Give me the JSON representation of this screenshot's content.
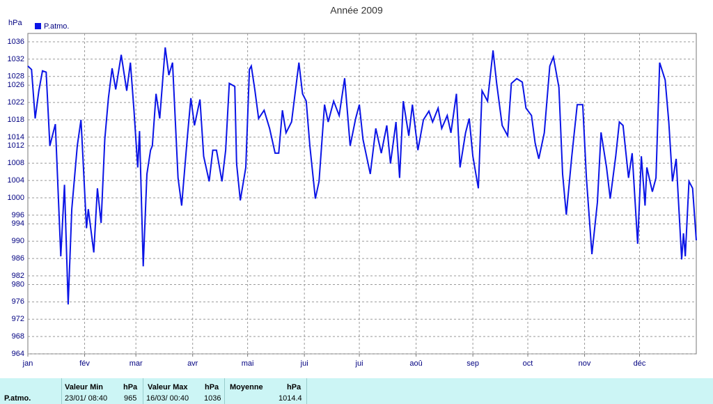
{
  "chart_data": {
    "type": "line",
    "title": "Année 2009",
    "ylabel": "hPa",
    "x": [
      0,
      2,
      4,
      6,
      8,
      10,
      12,
      15,
      18,
      20,
      22,
      24,
      27,
      29,
      30,
      32,
      33,
      36,
      38,
      40,
      42,
      44,
      46,
      48,
      51,
      54,
      56,
      58,
      60,
      61,
      63,
      65,
      67,
      68,
      70,
      72,
      75,
      77,
      79,
      82,
      84,
      87,
      89,
      91,
      94,
      96,
      99,
      101,
      103,
      106,
      108,
      110,
      113,
      114,
      116,
      119,
      121,
      122,
      124,
      126,
      129,
      132,
      135,
      137,
      139,
      141,
      144,
      148,
      150,
      152,
      154,
      157,
      159,
      162,
      164,
      167,
      170,
      173,
      176,
      179,
      181,
      183,
      187,
      190,
      193,
      196,
      198,
      201,
      203,
      205,
      208,
      210,
      213,
      216,
      219,
      221,
      224,
      226,
      229,
      231,
      234,
      236,
      239,
      241,
      243,
      246,
      248,
      251,
      254,
      256,
      259,
      262,
      264,
      267,
      270,
      272,
      275,
      277,
      279,
      282,
      285,
      287,
      290,
      292,
      294,
      297,
      300,
      303,
      305,
      308,
      311,
      313,
      316,
      318,
      321,
      323,
      325,
      328,
      330,
      333,
      335,
      337,
      338,
      341,
      343,
      345,
      348,
      350,
      352,
      354,
      357,
      358,
      359,
      361,
      363,
      365
    ],
    "series": [
      {
        "name": "P.atmo.",
        "color": "#0a14e6",
        "values": [
          1030.4,
          1029.6,
          1018.3,
          1024.7,
          1029.3,
          1029,
          1012,
          1017,
          986.5,
          1003,
          975.4,
          997.4,
          1012,
          1018,
          1010,
          993,
          997.4,
          987.4,
          1002.2,
          994.2,
          1013.5,
          1023,
          1029.9,
          1025,
          1033,
          1024.7,
          1031.2,
          1020,
          1007,
          1015.4,
          984.2,
          1005.5,
          1011,
          1012,
          1024,
          1018.3,
          1034.7,
          1028.3,
          1031.2,
          1004.6,
          998.2,
          1013.5,
          1023,
          1016.7,
          1022.7,
          1009.6,
          1003.8,
          1011,
          1011,
          1003.8,
          1011,
          1026.4,
          1025.7,
          1007.9,
          999.4,
          1007,
          1029.6,
          1030.4,
          1024.8,
          1018.3,
          1020.2,
          1016,
          1010.3,
          1010.3,
          1020.2,
          1015,
          1017.5,
          1031.2,
          1024,
          1022.3,
          1012,
          999.8,
          1003.8,
          1021.5,
          1017.5,
          1022.3,
          1019,
          1027.6,
          1012,
          1018.3,
          1021.5,
          1013.5,
          1005.5,
          1016,
          1010.3,
          1016.7,
          1007.9,
          1017.5,
          1004.6,
          1022.3,
          1014.3,
          1021.5,
          1011,
          1018,
          1020,
          1017.5,
          1020.7,
          1016,
          1019,
          1015,
          1024,
          1007,
          1015,
          1018.3,
          1009.6,
          1002.2,
          1024.7,
          1022.3,
          1034,
          1026.4,
          1016.7,
          1014.3,
          1026.4,
          1027.5,
          1026.7,
          1020.7,
          1019,
          1012.7,
          1009,
          1015,
          1030.4,
          1032.5,
          1025.5,
          1005.5,
          996.1,
          1009.6,
          1021.5,
          1021.5,
          1004.6,
          987,
          999,
          1015.1,
          1007,
          999.8,
          1009.6,
          1017.5,
          1016.7,
          1004.6,
          1010.3,
          989.4,
          1009.6,
          998.2,
          1007,
          1001.4,
          1004.6,
          1031.2,
          1027.2,
          1017.5,
          1003.8,
          1009,
          985.8,
          991.8,
          986.5,
          1003.8,
          1002.2,
          990.2
        ]
      }
    ],
    "xlim": [
      0,
      365
    ],
    "xticks": [
      {
        "value": 0,
        "label": "jan"
      },
      {
        "value": 31,
        "label": "fév"
      },
      {
        "value": 59,
        "label": "mar"
      },
      {
        "value": 90,
        "label": "avr"
      },
      {
        "value": 120,
        "label": "mai"
      },
      {
        "value": 151,
        "label": "jui"
      },
      {
        "value": 181,
        "label": "jui"
      },
      {
        "value": 212,
        "label": "aoû"
      },
      {
        "value": 243,
        "label": "sep"
      },
      {
        "value": 273,
        "label": "oct"
      },
      {
        "value": 304,
        "label": "nov"
      },
      {
        "value": 334,
        "label": "déc"
      }
    ],
    "ylim": [
      964,
      1036
    ],
    "yticks": [
      964,
      968,
      972,
      976,
      980,
      982,
      986,
      990,
      994,
      996,
      1000,
      1004,
      1008,
      1012,
      1014,
      1018,
      1022,
      1026,
      1028,
      1032,
      1036
    ],
    "grid": true
  },
  "summary": {
    "row_label": "P.atmo.",
    "min": {
      "header": "Valeur Min",
      "unit": "hPa",
      "date": "23/01/ 08:40",
      "value": "965"
    },
    "max": {
      "header": "Valeur Max",
      "unit": "hPa",
      "date": "16/03/ 00:40",
      "value": "1036"
    },
    "mean": {
      "header": "Moyenne",
      "unit": "hPa",
      "value": "1014.4"
    }
  }
}
